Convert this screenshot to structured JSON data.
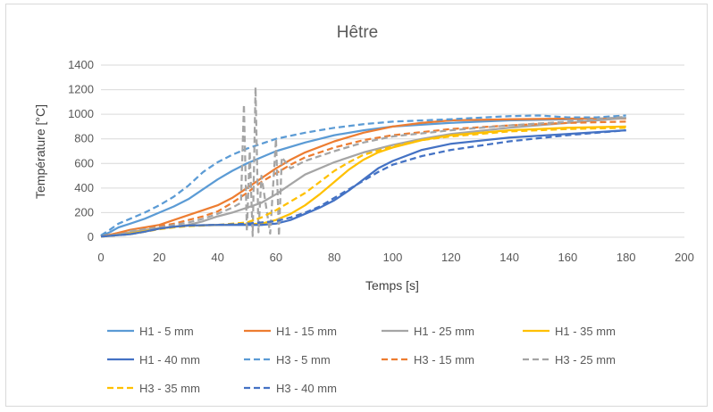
{
  "chart_data": {
    "type": "line",
    "title": "Hêtre",
    "xlabel": "Temps [s]",
    "ylabel": "Température [°C]",
    "xlim": [
      0,
      200
    ],
    "ylim": [
      0,
      1400
    ],
    "xticks": [
      0,
      20,
      40,
      60,
      80,
      100,
      120,
      140,
      160,
      180,
      200
    ],
    "yticks": [
      0,
      200,
      400,
      600,
      800,
      1000,
      1200,
      1400
    ],
    "grid": "horizontal",
    "legend_position": "bottom",
    "series": [
      {
        "name": "H1 - 5 mm",
        "color": "#5B9BD5",
        "dash": false,
        "points": [
          [
            0,
            10
          ],
          [
            3,
            40
          ],
          [
            6,
            80
          ],
          [
            10,
            110
          ],
          [
            15,
            150
          ],
          [
            20,
            200
          ],
          [
            25,
            250
          ],
          [
            30,
            310
          ],
          [
            35,
            390
          ],
          [
            40,
            470
          ],
          [
            45,
            540
          ],
          [
            50,
            600
          ],
          [
            55,
            650
          ],
          [
            60,
            700
          ],
          [
            70,
            770
          ],
          [
            80,
            830
          ],
          [
            90,
            870
          ],
          [
            100,
            900
          ],
          [
            120,
            930
          ],
          [
            140,
            950
          ],
          [
            160,
            960
          ],
          [
            180,
            970
          ]
        ]
      },
      {
        "name": "H1 - 15 mm",
        "color": "#ED7D31",
        "dash": false,
        "points": [
          [
            0,
            5
          ],
          [
            5,
            30
          ],
          [
            10,
            60
          ],
          [
            15,
            80
          ],
          [
            20,
            100
          ],
          [
            25,
            140
          ],
          [
            30,
            180
          ],
          [
            35,
            220
          ],
          [
            40,
            260
          ],
          [
            45,
            320
          ],
          [
            50,
            400
          ],
          [
            55,
            480
          ],
          [
            60,
            560
          ],
          [
            65,
            630
          ],
          [
            70,
            690
          ],
          [
            80,
            780
          ],
          [
            90,
            850
          ],
          [
            100,
            900
          ],
          [
            110,
            930
          ],
          [
            120,
            950
          ],
          [
            140,
            960
          ],
          [
            160,
            965
          ],
          [
            180,
            965
          ]
        ]
      },
      {
        "name": "H1 - 25 mm",
        "color": "#A5A5A5",
        "dash": false,
        "points": [
          [
            0,
            5
          ],
          [
            5,
            20
          ],
          [
            10,
            40
          ],
          [
            15,
            60
          ],
          [
            20,
            75
          ],
          [
            25,
            85
          ],
          [
            30,
            100
          ],
          [
            35,
            130
          ],
          [
            40,
            170
          ],
          [
            45,
            200
          ],
          [
            50,
            240
          ],
          [
            55,
            280
          ],
          [
            60,
            350
          ],
          [
            65,
            430
          ],
          [
            70,
            510
          ],
          [
            80,
            610
          ],
          [
            90,
            690
          ],
          [
            100,
            750
          ],
          [
            110,
            800
          ],
          [
            120,
            840
          ],
          [
            140,
            890
          ],
          [
            160,
            930
          ],
          [
            180,
            970
          ]
        ]
      },
      {
        "name": "H1 - 35 mm",
        "color": "#FFC000",
        "dash": false,
        "points": [
          [
            0,
            5
          ],
          [
            5,
            15
          ],
          [
            10,
            30
          ],
          [
            15,
            50
          ],
          [
            20,
            70
          ],
          [
            25,
            85
          ],
          [
            30,
            95
          ],
          [
            40,
            100
          ],
          [
            50,
            105
          ],
          [
            55,
            110
          ],
          [
            60,
            140
          ],
          [
            65,
            190
          ],
          [
            70,
            260
          ],
          [
            75,
            350
          ],
          [
            80,
            450
          ],
          [
            85,
            550
          ],
          [
            90,
            630
          ],
          [
            95,
            690
          ],
          [
            100,
            730
          ],
          [
            110,
            790
          ],
          [
            120,
            830
          ],
          [
            140,
            870
          ],
          [
            160,
            890
          ],
          [
            180,
            900
          ]
        ]
      },
      {
        "name": "H1 - 40 mm",
        "color": "#4472C4",
        "dash": false,
        "points": [
          [
            0,
            5
          ],
          [
            5,
            15
          ],
          [
            10,
            25
          ],
          [
            15,
            45
          ],
          [
            20,
            70
          ],
          [
            25,
            85
          ],
          [
            30,
            95
          ],
          [
            40,
            100
          ],
          [
            50,
            100
          ],
          [
            55,
            100
          ],
          [
            60,
            110
          ],
          [
            65,
            140
          ],
          [
            70,
            190
          ],
          [
            75,
            240
          ],
          [
            80,
            300
          ],
          [
            85,
            380
          ],
          [
            90,
            470
          ],
          [
            95,
            560
          ],
          [
            100,
            620
          ],
          [
            110,
            710
          ],
          [
            120,
            760
          ],
          [
            140,
            810
          ],
          [
            160,
            840
          ],
          [
            180,
            870
          ]
        ]
      },
      {
        "name": "H3 - 5 mm",
        "color": "#5B9BD5",
        "dash": true,
        "points": [
          [
            0,
            15
          ],
          [
            3,
            60
          ],
          [
            6,
            110
          ],
          [
            10,
            150
          ],
          [
            15,
            200
          ],
          [
            20,
            260
          ],
          [
            25,
            330
          ],
          [
            30,
            420
          ],
          [
            35,
            530
          ],
          [
            40,
            610
          ],
          [
            45,
            670
          ],
          [
            50,
            720
          ],
          [
            55,
            760
          ],
          [
            60,
            800
          ],
          [
            70,
            850
          ],
          [
            80,
            890
          ],
          [
            90,
            920
          ],
          [
            100,
            940
          ],
          [
            120,
            960
          ],
          [
            140,
            985
          ],
          [
            150,
            990
          ],
          [
            160,
            975
          ],
          [
            170,
            975
          ],
          [
            180,
            990
          ]
        ]
      },
      {
        "name": "H3 - 15 mm",
        "color": "#ED7D31",
        "dash": true,
        "points": [
          [
            0,
            5
          ],
          [
            5,
            30
          ],
          [
            10,
            50
          ],
          [
            15,
            70
          ],
          [
            20,
            90
          ],
          [
            25,
            110
          ],
          [
            30,
            140
          ],
          [
            35,
            170
          ],
          [
            40,
            210
          ],
          [
            45,
            280
          ],
          [
            50,
            360
          ],
          [
            55,
            450
          ],
          [
            60,
            520
          ],
          [
            65,
            590
          ],
          [
            70,
            650
          ],
          [
            80,
            730
          ],
          [
            90,
            790
          ],
          [
            100,
            830
          ],
          [
            120,
            880
          ],
          [
            140,
            910
          ],
          [
            160,
            930
          ],
          [
            180,
            940
          ]
        ]
      },
      {
        "name": "H3 - 25 mm",
        "color": "#A5A5A5",
        "dash": true,
        "points": [
          [
            0,
            5
          ],
          [
            5,
            20
          ],
          [
            8,
            30
          ],
          [
            10,
            50
          ],
          [
            15,
            65
          ],
          [
            20,
            80
          ],
          [
            25,
            100
          ],
          [
            30,
            120
          ],
          [
            35,
            150
          ],
          [
            40,
            190
          ],
          [
            45,
            240
          ],
          [
            48,
            280
          ],
          [
            49,
            1080
          ],
          [
            50,
            50
          ],
          [
            51,
            700
          ],
          [
            52,
            10
          ],
          [
            53,
            1220
          ],
          [
            54,
            40
          ],
          [
            55,
            500
          ],
          [
            58,
            30
          ],
          [
            60,
            800
          ],
          [
            61,
            10
          ],
          [
            62,
            650
          ],
          [
            65,
            560
          ],
          [
            70,
            620
          ],
          [
            80,
            700
          ],
          [
            90,
            770
          ],
          [
            100,
            820
          ],
          [
            120,
            870
          ],
          [
            140,
            910
          ],
          [
            160,
            940
          ],
          [
            180,
            980
          ]
        ]
      },
      {
        "name": "H3 - 35 mm",
        "color": "#FFC000",
        "dash": true,
        "points": [
          [
            0,
            5
          ],
          [
            5,
            15
          ],
          [
            10,
            25
          ],
          [
            15,
            45
          ],
          [
            20,
            65
          ],
          [
            25,
            80
          ],
          [
            30,
            90
          ],
          [
            40,
            100
          ],
          [
            50,
            120
          ],
          [
            55,
            160
          ],
          [
            60,
            220
          ],
          [
            65,
            290
          ],
          [
            70,
            360
          ],
          [
            75,
            450
          ],
          [
            80,
            540
          ],
          [
            85,
            610
          ],
          [
            90,
            670
          ],
          [
            100,
            740
          ],
          [
            110,
            790
          ],
          [
            120,
            820
          ],
          [
            140,
            860
          ],
          [
            160,
            880
          ],
          [
            180,
            890
          ]
        ]
      },
      {
        "name": "H3 - 40 mm",
        "color": "#4472C4",
        "dash": true,
        "points": [
          [
            0,
            5
          ],
          [
            5,
            15
          ],
          [
            10,
            25
          ],
          [
            15,
            45
          ],
          [
            20,
            70
          ],
          [
            25,
            85
          ],
          [
            30,
            95
          ],
          [
            40,
            100
          ],
          [
            50,
            110
          ],
          [
            60,
            130
          ],
          [
            65,
            160
          ],
          [
            70,
            200
          ],
          [
            75,
            250
          ],
          [
            80,
            320
          ],
          [
            85,
            390
          ],
          [
            90,
            460
          ],
          [
            95,
            530
          ],
          [
            100,
            590
          ],
          [
            110,
            660
          ],
          [
            120,
            710
          ],
          [
            140,
            780
          ],
          [
            160,
            830
          ],
          [
            180,
            870
          ]
        ]
      }
    ]
  }
}
